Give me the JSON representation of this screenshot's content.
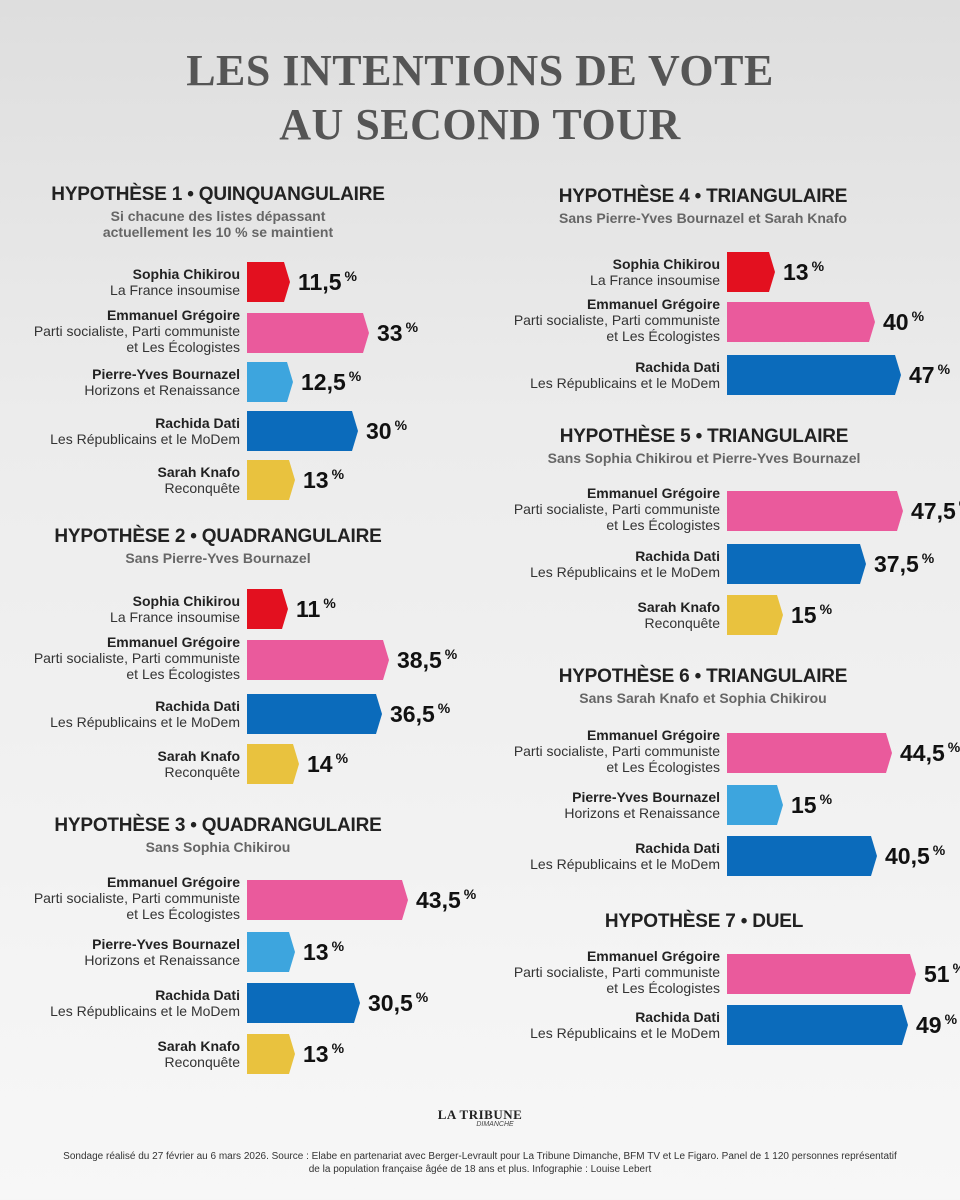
{
  "title_line1": "LES INTENTIONS DE VOTE",
  "title_line2": "AU SECOND TOUR",
  "colors": {
    "lfi": "#e3101f",
    "ps": "#ea5a9c",
    "horizons": "#3da5de",
    "lr": "#0b6bbb",
    "reconquete": "#e9c23e"
  },
  "chart_data": [
    {
      "type": "bar",
      "title": "HYPOTHÈSE 1 • QUINQUANGULAIRE",
      "subtitle": "Si chacune des listes dépassant actuellement les 10 % se maintient",
      "categories": [
        "Sophia Chikirou",
        "Emmanuel Grégoire",
        "Pierre-Yves Bournazel",
        "Rachida Dati",
        "Sarah Knafo"
      ],
      "parties": [
        "La France insoumise",
        "Parti socialiste, Parti communiste et Les Écologistes",
        "Horizons et Renaissance",
        "Les Républicains et le MoDem",
        "Reconquête"
      ],
      "values": [
        11.5,
        33,
        12.5,
        30,
        13
      ],
      "labels": [
        "11,5",
        "33",
        "12,5",
        "30",
        "13"
      ],
      "color_keys": [
        "lfi",
        "ps",
        "horizons",
        "lr",
        "reconquete"
      ],
      "unit": "%"
    },
    {
      "type": "bar",
      "title": "HYPOTHÈSE 2 • QUADRANGULAIRE",
      "subtitle": "Sans Pierre-Yves Bournazel",
      "categories": [
        "Sophia Chikirou",
        "Emmanuel Grégoire",
        "Rachida Dati",
        "Sarah Knafo"
      ],
      "parties": [
        "La France insoumise",
        "Parti socialiste, Parti communiste et Les Écologistes",
        "Les Républicains et le MoDem",
        "Reconquête"
      ],
      "values": [
        11,
        38.5,
        36.5,
        14
      ],
      "labels": [
        "11",
        "38,5",
        "36,5",
        "14"
      ],
      "color_keys": [
        "lfi",
        "ps",
        "lr",
        "reconquete"
      ],
      "unit": "%"
    },
    {
      "type": "bar",
      "title": "HYPOTHÈSE 3 • QUADRANGULAIRE",
      "subtitle": "Sans Sophia Chikirou",
      "categories": [
        "Emmanuel Grégoire",
        "Pierre-Yves Bournazel",
        "Rachida Dati",
        "Sarah Knafo"
      ],
      "parties": [
        "Parti socialiste, Parti communiste et Les Écologistes",
        "Horizons et Renaissance",
        "Les Républicains et le MoDem",
        "Reconquête"
      ],
      "values": [
        43.5,
        13,
        30.5,
        13
      ],
      "labels": [
        "43,5",
        "13",
        "30,5",
        "13"
      ],
      "color_keys": [
        "ps",
        "horizons",
        "lr",
        "reconquete"
      ],
      "unit": "%"
    },
    {
      "type": "bar",
      "title": "HYPOTHÈSE 4 • TRIANGULAIRE",
      "subtitle": "Sans Pierre-Yves Bournazel et Sarah Knafo",
      "categories": [
        "Sophia Chikirou",
        "Emmanuel Grégoire",
        "Rachida Dati"
      ],
      "parties": [
        "La France insoumise",
        "Parti socialiste, Parti communiste et Les Écologistes",
        "Les Républicains et le MoDem"
      ],
      "values": [
        13,
        40,
        47
      ],
      "labels": [
        "13",
        "40",
        "47"
      ],
      "color_keys": [
        "lfi",
        "ps",
        "lr"
      ],
      "unit": "%"
    },
    {
      "type": "bar",
      "title": "HYPOTHÈSE 5 • TRIANGULAIRE",
      "subtitle": "Sans Sophia Chikirou et Pierre-Yves Bournazel",
      "categories": [
        "Emmanuel Grégoire",
        "Rachida Dati",
        "Sarah Knafo"
      ],
      "parties": [
        "Parti socialiste, Parti communiste et Les Écologistes",
        "Les Républicains et le MoDem",
        "Reconquête"
      ],
      "values": [
        47.5,
        37.5,
        15
      ],
      "labels": [
        "47,5",
        "37,5",
        "15"
      ],
      "color_keys": [
        "ps",
        "lr",
        "reconquete"
      ],
      "unit": "%"
    },
    {
      "type": "bar",
      "title": "HYPOTHÈSE 6 • TRIANGULAIRE",
      "subtitle": "Sans Sarah Knafo et Sophia Chikirou",
      "categories": [
        "Emmanuel Grégoire",
        "Pierre-Yves Bournazel",
        "Rachida Dati"
      ],
      "parties": [
        "Parti socialiste, Parti communiste et Les Écologistes",
        "Horizons et Renaissance",
        "Les Républicains et le MoDem"
      ],
      "values": [
        44.5,
        15,
        40.5
      ],
      "labels": [
        "44,5",
        "15",
        "40,5"
      ],
      "color_keys": [
        "ps",
        "horizons",
        "lr"
      ],
      "unit": "%"
    },
    {
      "type": "bar",
      "title": "HYPOTHÈSE 7 • DUEL",
      "subtitle": "",
      "categories": [
        "Emmanuel Grégoire",
        "Rachida Dati"
      ],
      "parties": [
        "Parti socialiste, Parti communiste et Les Écologistes",
        "Les Républicains et le MoDem"
      ],
      "values": [
        51,
        49
      ],
      "labels": [
        "51",
        "49"
      ],
      "color_keys": [
        "ps",
        "lr"
      ],
      "unit": "%"
    }
  ],
  "logo_line1": "LA TRIBUNE",
  "logo_line2": "DIMANCHE",
  "source_text": "Sondage réalisé du 27 février au 6 mars 2026. Source : Elabe en partenariat avec Berger-Levrault pour La Tribune Dimanche, BFM TV et Le Figaro.  Panel de 1 120 personnes représentatif de la population française âgée de 18 ans et plus. Infographie : Louise Lebert"
}
